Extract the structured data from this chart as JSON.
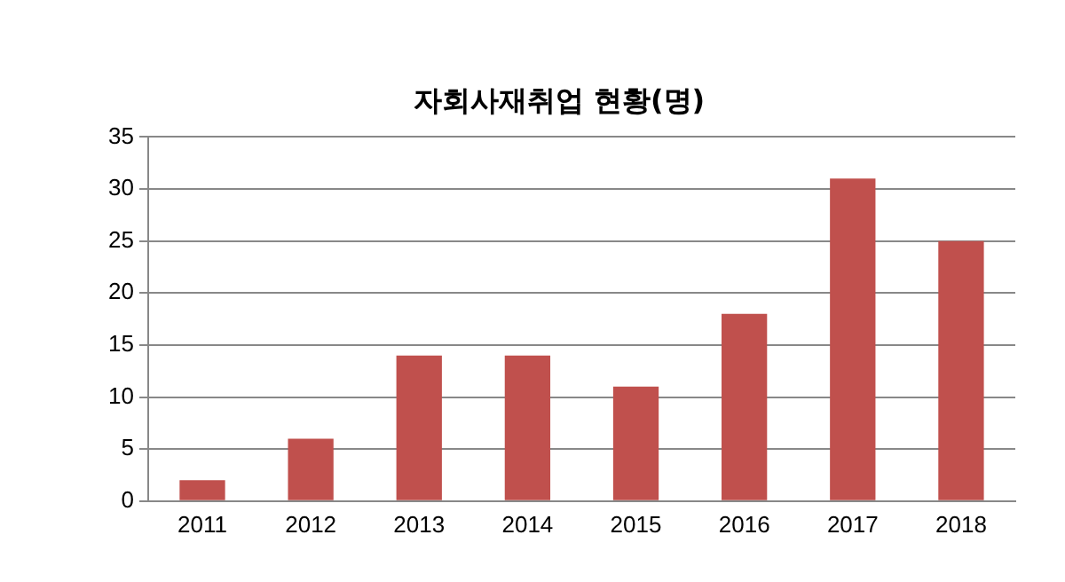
{
  "chart_data": {
    "type": "bar",
    "title": "자회사재취업 현황(명)",
    "categories": [
      "2011",
      "2012",
      "2013",
      "2014",
      "2015",
      "2016",
      "2017",
      "2018"
    ],
    "values": [
      2,
      6,
      14,
      14,
      11,
      18,
      31,
      25
    ],
    "color": "#c0504d",
    "ylim": [
      0,
      35
    ],
    "yticks": [
      0,
      5,
      10,
      15,
      20,
      25,
      30,
      35
    ],
    "grid": "y",
    "legend": false
  }
}
